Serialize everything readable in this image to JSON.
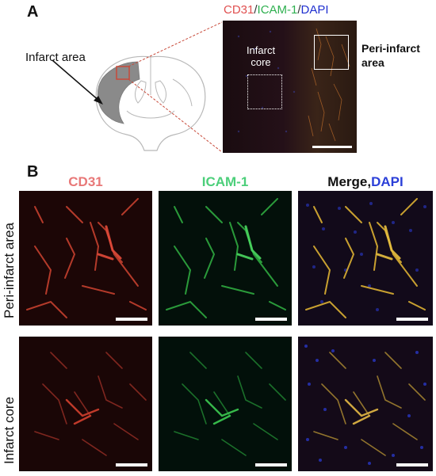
{
  "panel_a": {
    "letter": "A",
    "infarct_area_label": "Infarct area",
    "stain_title": {
      "cd31": "CD31",
      "sep1": "/",
      "icam1": "ICAM-1",
      "sep2": "/",
      "dapi": "DAPI"
    },
    "infarct_core_label_line1": "Infarct",
    "infarct_core_label_line2": "core",
    "peri_infarct_line1": "Peri-infarct",
    "peri_infarct_line2": "area"
  },
  "panel_b": {
    "letter": "B",
    "columns": {
      "cd31": "CD31",
      "icam1": "ICAM-1",
      "merge": "Merge,",
      "dapi": "DAPI"
    },
    "rows": {
      "peri": "Peri-infarct area",
      "core": "Infarct core"
    }
  },
  "colors": {
    "cd31": "#e05050",
    "icam1": "#2fb050",
    "dapi": "#2030d0",
    "cd31_title_b": "#e87878",
    "icam1_title_b": "#4ccf7a",
    "dapi_title_b": "#2b3fd8",
    "zoom_line": "#c84a3a"
  }
}
